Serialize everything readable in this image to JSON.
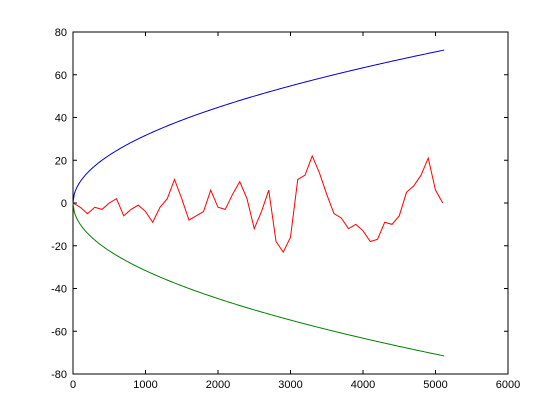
{
  "chart_data": {
    "type": "line",
    "title": "",
    "xlabel": "",
    "ylabel": "",
    "xlim": [
      0,
      6000
    ],
    "ylim": [
      -80,
      80
    ],
    "xticks": [
      0,
      1000,
      2000,
      3000,
      4000,
      5000,
      6000
    ],
    "yticks": [
      -80,
      -60,
      -40,
      -20,
      0,
      20,
      40,
      60,
      80
    ],
    "xtick_labels": [
      "0",
      "1000",
      "2000",
      "3000",
      "4000",
      "5000",
      "6000"
    ],
    "ytick_labels": [
      "-80",
      "-60",
      "-40",
      "-20",
      "0",
      "20",
      "40",
      "60",
      "80"
    ],
    "grid": false,
    "series": [
      {
        "color": "#0000cc",
        "function": "y = sqrt(x)",
        "x_range": [
          0,
          5120
        ]
      },
      {
        "color": "#008000",
        "function": "y = -sqrt(x)",
        "x_range": [
          0,
          5120
        ]
      },
      {
        "color": "#ff0000",
        "x": [
          0,
          100,
          200,
          300,
          400,
          500,
          600,
          700,
          800,
          900,
          1000,
          1100,
          1200,
          1300,
          1400,
          1500,
          1600,
          1700,
          1800,
          1900,
          2000,
          2100,
          2200,
          2300,
          2400,
          2500,
          2600,
          2700,
          2800,
          2900,
          3000,
          3100,
          3200,
          3300,
          3400,
          3500,
          3600,
          3700,
          3800,
          3900,
          4000,
          4100,
          4200,
          4300,
          4400,
          4500,
          4600,
          4700,
          4800,
          4900,
          5000,
          5100
        ],
        "y": [
          0,
          -2,
          -5,
          -2,
          -3,
          0,
          2,
          -6,
          -3,
          -1,
          -4,
          -9,
          -2,
          2,
          11,
          2,
          -8,
          -6,
          -4,
          6,
          -2,
          -3,
          4,
          10,
          2,
          -12,
          -4,
          6,
          -18,
          -23,
          -16,
          11,
          13,
          22,
          14,
          4,
          -5,
          -7,
          -12,
          -10,
          -13,
          -18,
          -17,
          -9,
          -10,
          -6,
          5,
          8,
          13,
          21,
          6,
          0
        ]
      }
    ]
  }
}
